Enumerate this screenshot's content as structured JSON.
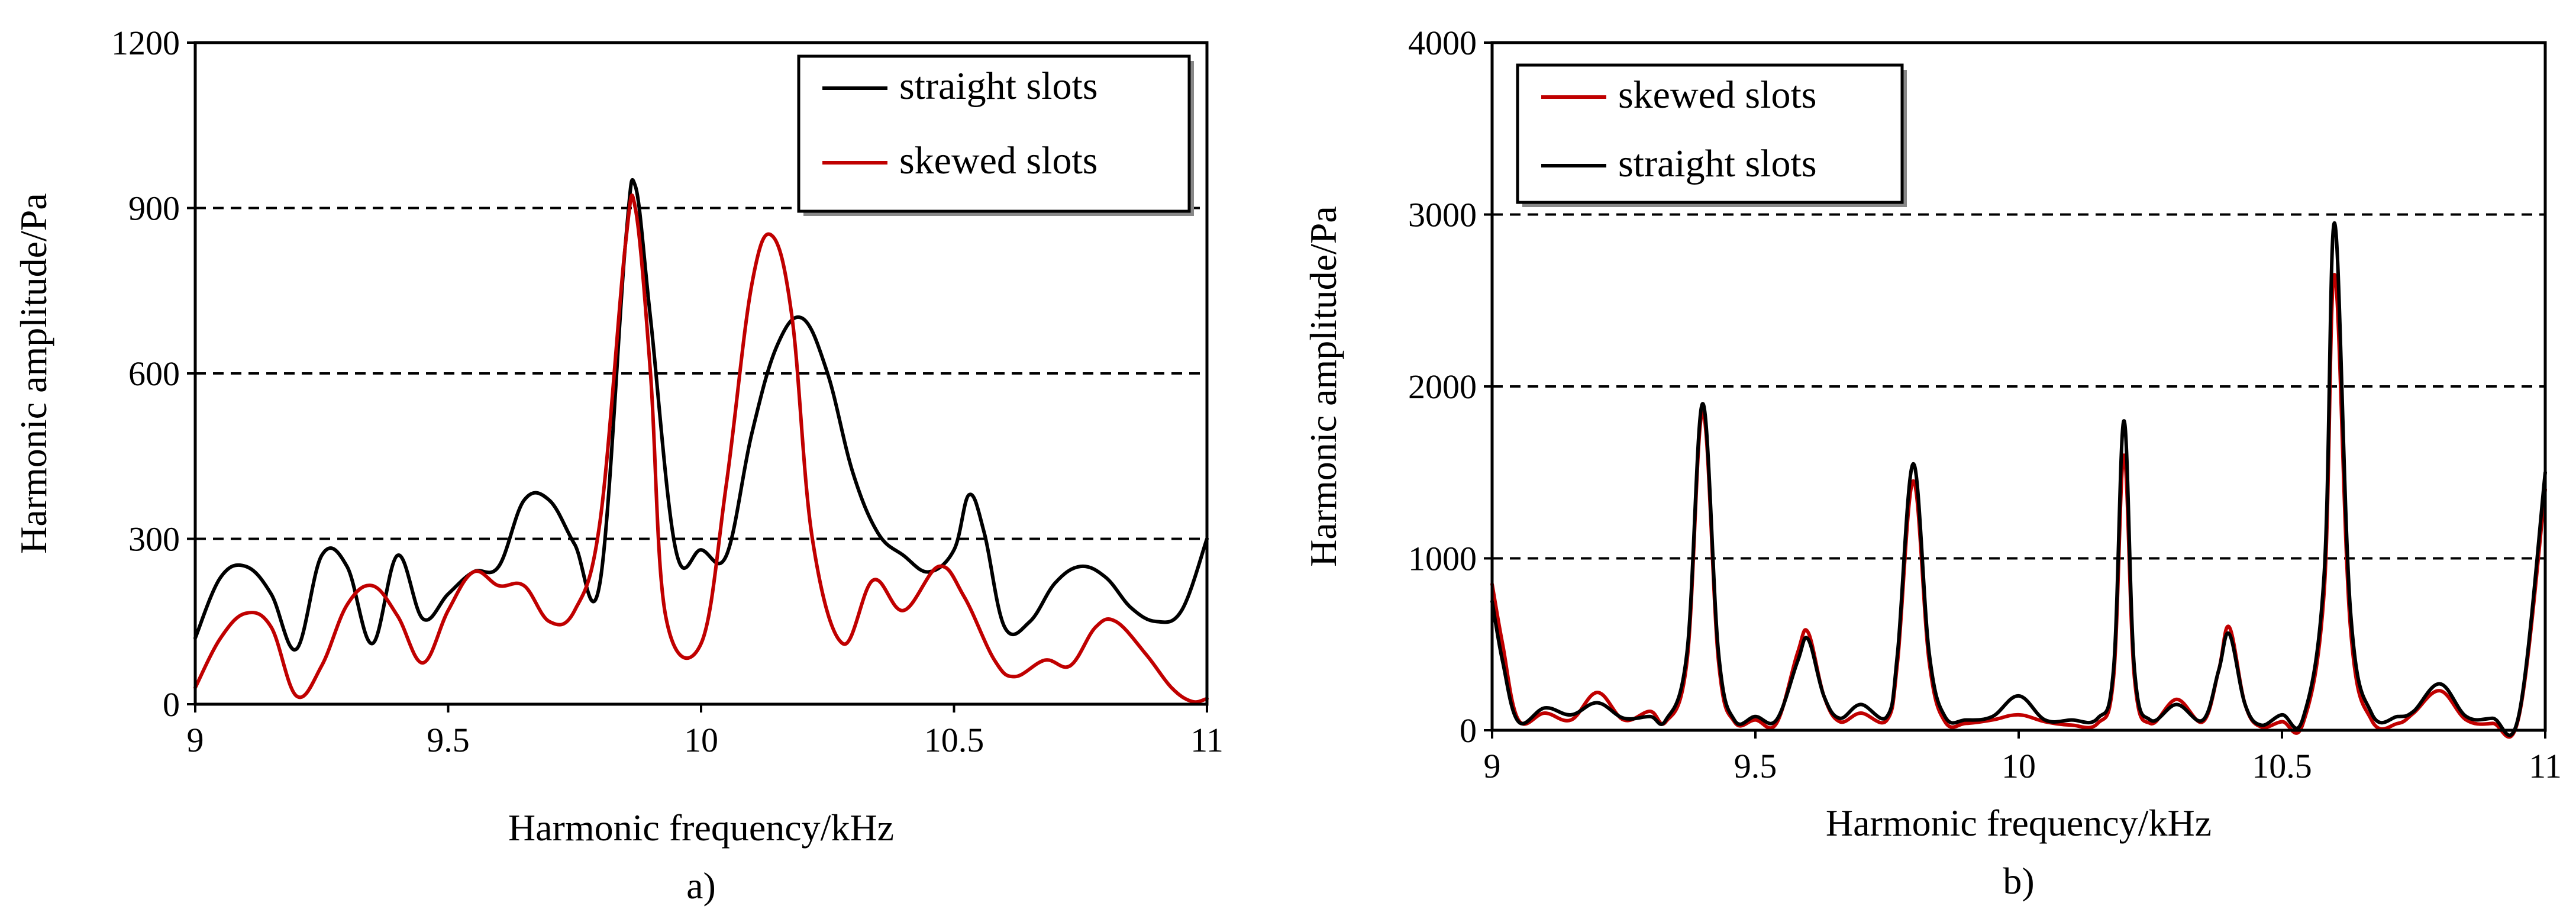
{
  "chart_data": [
    {
      "id": "a",
      "type": "line",
      "caption": "a)",
      "xlabel": "Harmonic frequency/kHz",
      "ylabel": "Harmonic amplitude/Pa",
      "xlim": [
        9,
        11
      ],
      "ylim": [
        0,
        1200
      ],
      "xticks": [
        "9",
        "9.5",
        "10",
        "10.5",
        "11"
      ],
      "yticks": [
        "0",
        "300",
        "600",
        "900",
        "1200"
      ],
      "grid": "dashed horizontal at 300, 600, 900",
      "legend_position": "top-right",
      "series": [
        {
          "name": "straight slots",
          "color": "#000000",
          "points": [
            [
              9.0,
              120
            ],
            [
              9.05,
              230
            ],
            [
              9.1,
              250
            ],
            [
              9.15,
              200
            ],
            [
              9.2,
              100
            ],
            [
              9.25,
              270
            ],
            [
              9.3,
              250
            ],
            [
              9.35,
              110
            ],
            [
              9.4,
              270
            ],
            [
              9.45,
              155
            ],
            [
              9.5,
              200
            ],
            [
              9.55,
              240
            ],
            [
              9.6,
              250
            ],
            [
              9.65,
              370
            ],
            [
              9.7,
              370
            ],
            [
              9.75,
              290
            ],
            [
              9.8,
              220
            ],
            [
              9.85,
              830
            ],
            [
              9.87,
              940
            ],
            [
              9.9,
              700
            ],
            [
              9.95,
              280
            ],
            [
              10.0,
              280
            ],
            [
              10.05,
              270
            ],
            [
              10.1,
              490
            ],
            [
              10.15,
              650
            ],
            [
              10.2,
              700
            ],
            [
              10.25,
              600
            ],
            [
              10.3,
              420
            ],
            [
              10.35,
              310
            ],
            [
              10.4,
              270
            ],
            [
              10.45,
              240
            ],
            [
              10.5,
              280
            ],
            [
              10.53,
              380
            ],
            [
              10.56,
              310
            ],
            [
              10.6,
              140
            ],
            [
              10.65,
              150
            ],
            [
              10.7,
              220
            ],
            [
              10.75,
              250
            ],
            [
              10.8,
              230
            ],
            [
              10.85,
              175
            ],
            [
              10.9,
              150
            ],
            [
              10.95,
              170
            ],
            [
              11.0,
              300
            ]
          ]
        },
        {
          "name": "skewed slots",
          "color": "#c00000",
          "points": [
            [
              9.0,
              30
            ],
            [
              9.05,
              120
            ],
            [
              9.1,
              165
            ],
            [
              9.15,
              140
            ],
            [
              9.2,
              15
            ],
            [
              9.25,
              70
            ],
            [
              9.3,
              180
            ],
            [
              9.35,
              215
            ],
            [
              9.4,
              160
            ],
            [
              9.45,
              75
            ],
            [
              9.5,
              170
            ],
            [
              9.55,
              240
            ],
            [
              9.6,
              215
            ],
            [
              9.65,
              215
            ],
            [
              9.7,
              150
            ],
            [
              9.75,
              170
            ],
            [
              9.8,
              330
            ],
            [
              9.85,
              830
            ],
            [
              9.87,
              900
            ],
            [
              9.9,
              600
            ],
            [
              9.93,
              160
            ],
            [
              10.0,
              110
            ],
            [
              10.05,
              400
            ],
            [
              10.1,
              760
            ],
            [
              10.14,
              850
            ],
            [
              10.18,
              700
            ],
            [
              10.22,
              300
            ],
            [
              10.28,
              110
            ],
            [
              10.34,
              225
            ],
            [
              10.4,
              170
            ],
            [
              10.47,
              250
            ],
            [
              10.52,
              195
            ],
            [
              10.58,
              80
            ],
            [
              10.62,
              50
            ],
            [
              10.68,
              80
            ],
            [
              10.73,
              70
            ],
            [
              10.78,
              140
            ],
            [
              10.82,
              150
            ],
            [
              10.88,
              90
            ],
            [
              10.93,
              30
            ],
            [
              10.97,
              5
            ],
            [
              11.0,
              10
            ]
          ]
        }
      ]
    },
    {
      "id": "b",
      "type": "line",
      "caption": "b)",
      "xlabel": "Harmonic frequency/kHz",
      "ylabel": "Harmonic amplitude/Pa",
      "xlim": [
        9,
        11
      ],
      "ylim": [
        0,
        4000
      ],
      "xticks": [
        "9",
        "9.5",
        "10",
        "10.5",
        "11"
      ],
      "yticks": [
        "0",
        "1000",
        "2000",
        "3000",
        "4000"
      ],
      "grid": "dashed horizontal at 1000, 2000, 3000",
      "legend_position": "top-left",
      "series": [
        {
          "name": "skewed slots",
          "color": "#c00000",
          "points": [
            [
              9.0,
              850
            ],
            [
              9.02,
              500
            ],
            [
              9.05,
              60
            ],
            [
              9.1,
              100
            ],
            [
              9.15,
              60
            ],
            [
              9.2,
              220
            ],
            [
              9.25,
              60
            ],
            [
              9.3,
              110
            ],
            [
              9.33,
              50
            ],
            [
              9.37,
              400
            ],
            [
              9.4,
              1850
            ],
            [
              9.43,
              400
            ],
            [
              9.46,
              50
            ],
            [
              9.5,
              60
            ],
            [
              9.54,
              40
            ],
            [
              9.58,
              450
            ],
            [
              9.6,
              570
            ],
            [
              9.63,
              200
            ],
            [
              9.66,
              50
            ],
            [
              9.7,
              100
            ],
            [
              9.75,
              60
            ],
            [
              9.77,
              400
            ],
            [
              9.8,
              1450
            ],
            [
              9.83,
              400
            ],
            [
              9.86,
              50
            ],
            [
              9.9,
              40
            ],
            [
              9.95,
              60
            ],
            [
              10.0,
              90
            ],
            [
              10.05,
              50
            ],
            [
              10.1,
              30
            ],
            [
              10.15,
              40
            ],
            [
              10.18,
              300
            ],
            [
              10.2,
              1600
            ],
            [
              10.22,
              300
            ],
            [
              10.25,
              40
            ],
            [
              10.3,
              180
            ],
            [
              10.35,
              50
            ],
            [
              10.38,
              350
            ],
            [
              10.4,
              600
            ],
            [
              10.43,
              150
            ],
            [
              10.46,
              20
            ],
            [
              10.5,
              50
            ],
            [
              10.54,
              40
            ],
            [
              10.58,
              800
            ],
            [
              10.6,
              2650
            ],
            [
              10.63,
              600
            ],
            [
              10.67,
              60
            ],
            [
              10.72,
              40
            ],
            [
              10.75,
              100
            ],
            [
              10.8,
              230
            ],
            [
              10.85,
              60
            ],
            [
              10.9,
              40
            ],
            [
              10.95,
              80
            ],
            [
              11.0,
              1400
            ]
          ]
        },
        {
          "name": "straight slots",
          "color": "#000000",
          "points": [
            [
              9.0,
              750
            ],
            [
              9.02,
              400
            ],
            [
              9.05,
              50
            ],
            [
              9.1,
              130
            ],
            [
              9.15,
              90
            ],
            [
              9.2,
              160
            ],
            [
              9.25,
              70
            ],
            [
              9.3,
              80
            ],
            [
              9.33,
              60
            ],
            [
              9.37,
              450
            ],
            [
              9.4,
              1900
            ],
            [
              9.43,
              450
            ],
            [
              9.46,
              60
            ],
            [
              9.5,
              80
            ],
            [
              9.54,
              60
            ],
            [
              9.58,
              400
            ],
            [
              9.6,
              530
            ],
            [
              9.63,
              200
            ],
            [
              9.66,
              70
            ],
            [
              9.7,
              150
            ],
            [
              9.75,
              80
            ],
            [
              9.77,
              450
            ],
            [
              9.8,
              1550
            ],
            [
              9.83,
              450
            ],
            [
              9.86,
              80
            ],
            [
              9.9,
              60
            ],
            [
              9.95,
              80
            ],
            [
              10.0,
              200
            ],
            [
              10.05,
              60
            ],
            [
              10.1,
              60
            ],
            [
              10.15,
              70
            ],
            [
              10.18,
              350
            ],
            [
              10.2,
              1800
            ],
            [
              10.22,
              350
            ],
            [
              10.25,
              60
            ],
            [
              10.3,
              150
            ],
            [
              10.35,
              60
            ],
            [
              10.38,
              350
            ],
            [
              10.4,
              560
            ],
            [
              10.43,
              150
            ],
            [
              10.46,
              30
            ],
            [
              10.5,
              90
            ],
            [
              10.54,
              70
            ],
            [
              10.58,
              900
            ],
            [
              10.6,
              2950
            ],
            [
              10.63,
              700
            ],
            [
              10.67,
              100
            ],
            [
              10.72,
              80
            ],
            [
              10.75,
              110
            ],
            [
              10.8,
              270
            ],
            [
              10.85,
              80
            ],
            [
              10.9,
              70
            ],
            [
              10.95,
              90
            ],
            [
              11.0,
              1500
            ]
          ]
        }
      ]
    }
  ]
}
